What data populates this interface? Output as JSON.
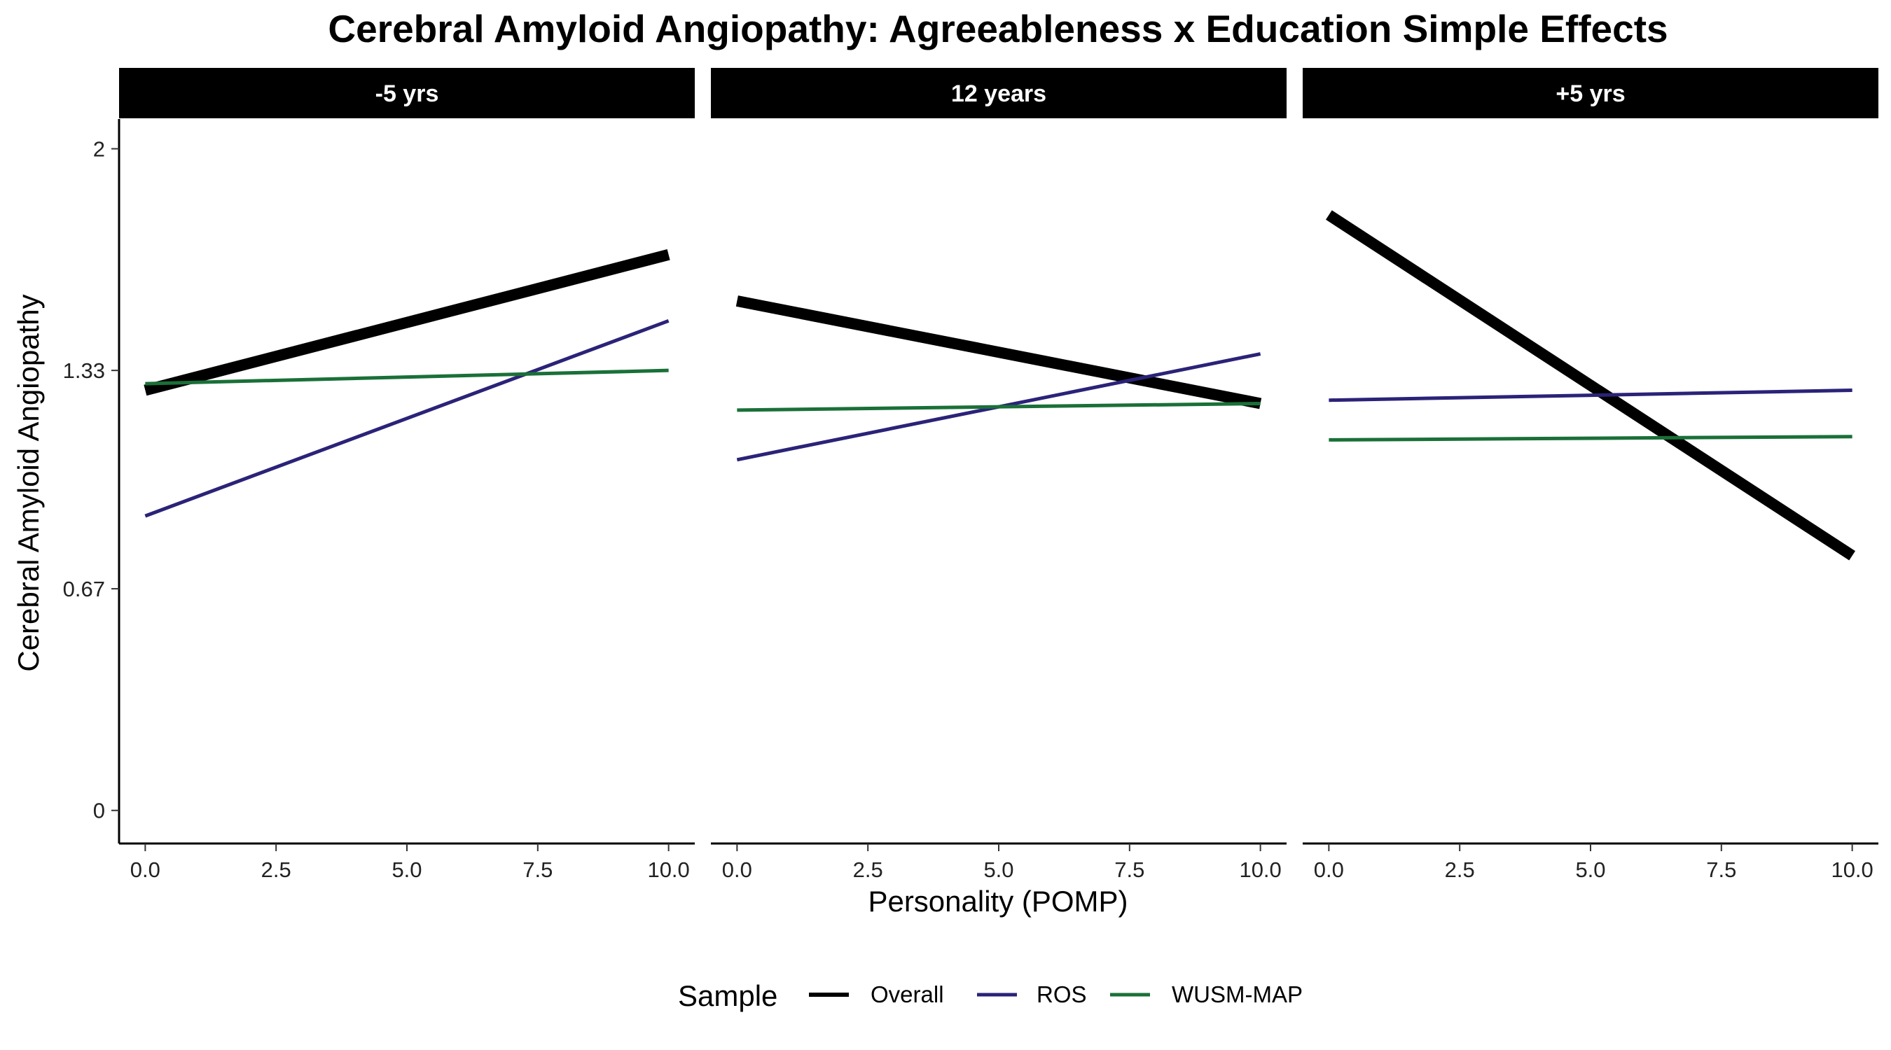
{
  "chart_data": {
    "type": "line",
    "title": "Cerebral Amyloid Angiopathy: Agreeableness x Education Simple Effects",
    "xlabel": "Personality (POMP)",
    "ylabel": "Cerebral Amyloid Angiopathy",
    "xlim": [
      -0.5,
      10.5
    ],
    "ylim": [
      -0.1,
      2.09
    ],
    "x_ticks": [
      0,
      2.5,
      5,
      7.5,
      10
    ],
    "x_tick_labels": [
      "0.0",
      "2.5",
      "5.0",
      "7.5",
      "10.0"
    ],
    "y_ticks": [
      0,
      0.67,
      1.33,
      2
    ],
    "y_tick_labels": [
      "0",
      "0.67",
      "1.33",
      "2"
    ],
    "grid": false,
    "legend_title": "Sample",
    "legend_position": "bottom",
    "series_styles": [
      {
        "name": "Overall",
        "color": "#000000",
        "thick": true
      },
      {
        "name": "ROS",
        "color": "#2b2378",
        "thick": false
      },
      {
        "name": "WUSM-MAP",
        "color": "#1a7038",
        "thick": false
      }
    ],
    "panels": [
      {
        "label": "-5 yrs",
        "series": [
          {
            "name": "Overall",
            "x": [
              0,
              10
            ],
            "y": [
              1.27,
              1.68
            ]
          },
          {
            "name": "ROS",
            "x": [
              0,
              10
            ],
            "y": [
              0.89,
              1.48
            ]
          },
          {
            "name": "WUSM-MAP",
            "x": [
              0,
              10
            ],
            "y": [
              1.29,
              1.33
            ]
          }
        ]
      },
      {
        "label": "12 years",
        "series": [
          {
            "name": "Overall",
            "x": [
              0,
              10
            ],
            "y": [
              1.54,
              1.23
            ]
          },
          {
            "name": "ROS",
            "x": [
              0,
              10
            ],
            "y": [
              1.06,
              1.38
            ]
          },
          {
            "name": "WUSM-MAP",
            "x": [
              0,
              10
            ],
            "y": [
              1.21,
              1.23
            ]
          }
        ]
      },
      {
        "label": "+5 yrs",
        "series": [
          {
            "name": "Overall",
            "x": [
              0,
              10
            ],
            "y": [
              1.8,
              0.77
            ]
          },
          {
            "name": "ROS",
            "x": [
              0,
              10
            ],
            "y": [
              1.24,
              1.27
            ]
          },
          {
            "name": "WUSM-MAP",
            "x": [
              0,
              10
            ],
            "y": [
              1.12,
              1.13
            ]
          }
        ]
      }
    ]
  }
}
